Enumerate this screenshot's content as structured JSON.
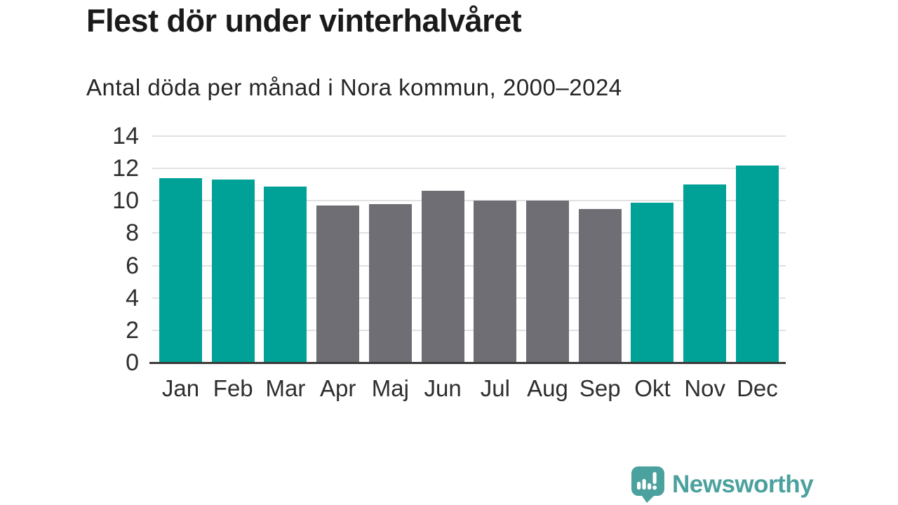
{
  "header": {
    "title": "Flest dör under vinterhalvåret",
    "subtitle": "Antal döda per månad i Nora kommun, 2000–2024"
  },
  "chart_data": {
    "type": "bar",
    "title": "Flest dör under vinterhalvåret",
    "subtitle": "Antal döda per månad i Nora kommun, 2000–2024",
    "categories": [
      "Jan",
      "Feb",
      "Mar",
      "Apr",
      "Maj",
      "Jun",
      "Jul",
      "Aug",
      "Sep",
      "Okt",
      "Nov",
      "Dec"
    ],
    "values": [
      11.4,
      11.3,
      10.9,
      9.7,
      9.8,
      10.6,
      10.0,
      10.0,
      9.5,
      9.9,
      11.0,
      12.2
    ],
    "bar_color_keys": [
      "winter",
      "winter",
      "winter",
      "summer",
      "summer",
      "summer",
      "summer",
      "summer",
      "summer",
      "winter",
      "winter",
      "winter"
    ],
    "palette": {
      "winter": "#00a196",
      "summer": "#6e6e74"
    },
    "xlabel": "",
    "ylabel": "",
    "ylim": [
      0,
      14
    ],
    "yticks": [
      0,
      2,
      4,
      6,
      8,
      10,
      12,
      14
    ],
    "grid": true,
    "gridline_color": "#e1e1e1",
    "axis_line_color": "#3a3a3a",
    "tick_label_color": "#2e2e2e",
    "legend": "none"
  },
  "footer": {
    "brand": "Newsworthy",
    "brand_color": "#4ba19e",
    "brand_icon": "speech-bubble-bar-chart-exclamation"
  }
}
